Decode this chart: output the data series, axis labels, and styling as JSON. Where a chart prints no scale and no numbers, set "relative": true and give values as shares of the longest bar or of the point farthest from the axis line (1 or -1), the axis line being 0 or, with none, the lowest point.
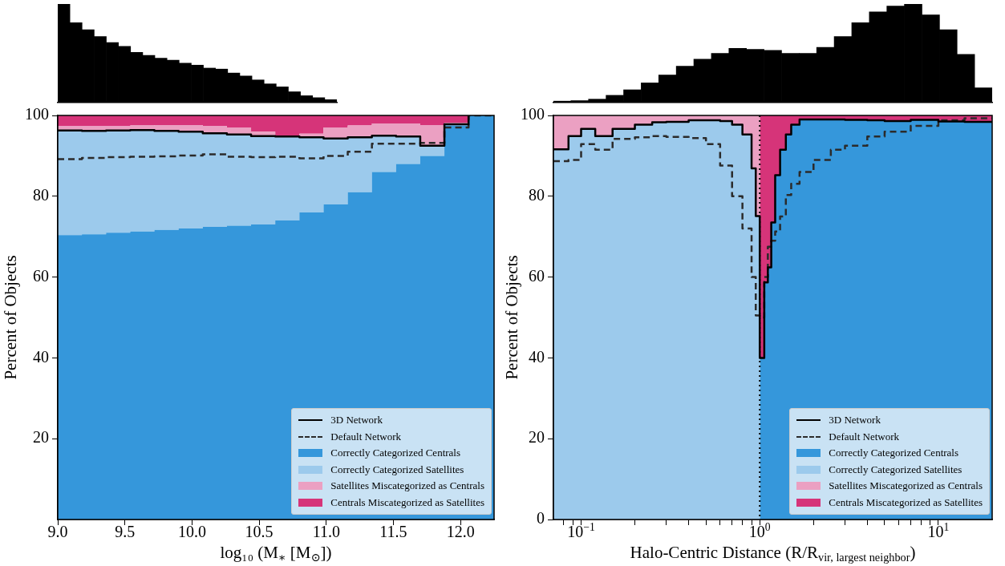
{
  "chart_data": [
    {
      "type": "bar",
      "relative": true,
      "color": "#000000",
      "categories": [
        null,
        null,
        null,
        null,
        null,
        null,
        null,
        null,
        null,
        null,
        null,
        null,
        null,
        null,
        null,
        null,
        null,
        null,
        null,
        null,
        null,
        null,
        null
      ],
      "values": [
        1,
        0.81,
        0.74,
        0.67,
        0.61,
        0.57,
        0.51,
        0.48,
        0.45,
        0.43,
        0.4,
        0.38,
        0.35,
        0.34,
        0.3,
        0.27,
        0.23,
        0.19,
        0.16,
        0.11,
        0.07,
        0.05,
        0.03
      ]
    },
    {
      "type": "bar",
      "relative": true,
      "color": "#000000",
      "categories": [
        null,
        null,
        null,
        null,
        null,
        null,
        null,
        null,
        null,
        null,
        null,
        null,
        null,
        null,
        null,
        null,
        null,
        null,
        null,
        null,
        null,
        null,
        null,
        null,
        null
      ],
      "values": [
        0.015,
        0.02,
        0.035,
        0.074,
        0.13,
        0.2,
        0.28,
        0.37,
        0.44,
        0.5,
        0.55,
        0.54,
        0.53,
        0.5,
        0.5,
        0.56,
        0.67,
        0.81,
        0.92,
        0.98,
        1,
        0.89,
        0.74,
        0.49,
        0.15
      ]
    },
    {
      "type": "area",
      "stacked": true,
      "xlabel": "log₁₀ (M$_{∗}$ [M$_{⊙}$])",
      "ylabel": "Percent of Objects",
      "legend": "bottom right",
      "xlim": [
        9.0,
        12.25
      ],
      "ylim": [
        0,
        100
      ],
      "xticks": [
        {
          "value": 9,
          "label": "9.0"
        },
        9.5,
        {
          "value": 10,
          "label": "10.0"
        },
        10.5,
        {
          "value": 11,
          "label": "11.0"
        },
        11.5,
        {
          "value": 12,
          "label": "12.0"
        }
      ],
      "yticks": [
        20,
        40,
        60,
        80,
        100
      ],
      "x": [
        9.0,
        9.18,
        9.36,
        9.54,
        9.72,
        9.9,
        10.08,
        10.26,
        10.44,
        10.62,
        10.8,
        10.98,
        11.16,
        11.34,
        11.52,
        11.7,
        11.88,
        12.06,
        12.25
      ],
      "series": [
        {
          "name": "3D Network",
          "type": "step",
          "line_style": "solid",
          "color": "#000000",
          "values": [
            96.3,
            96.2,
            96.3,
            96.4,
            96.2,
            96,
            95.6,
            95.3,
            94.9,
            94.8,
            94.6,
            94.3,
            94.6,
            95,
            94.8,
            92.5,
            97.8,
            99.8,
            null
          ]
        },
        {
          "name": "Default Network",
          "type": "step",
          "line_style": "dashed",
          "color": "#2b2b2b",
          "values": [
            89.2,
            89.5,
            89.7,
            89.8,
            89.9,
            90.1,
            90.4,
            89.8,
            89.7,
            89.8,
            89.4,
            90,
            91,
            93,
            93,
            93.2,
            97,
            100,
            100
          ]
        },
        {
          "name": "Correctly Categorized Centrals",
          "color": "#3597db",
          "values": [
            70.4,
            70.6,
            71,
            71.3,
            71.7,
            72,
            72.4,
            72.7,
            73,
            74,
            76,
            78,
            81,
            86,
            88,
            90,
            97.5,
            100,
            100
          ]
        },
        {
          "name": "Correctly Categorized Satellites",
          "color": "#9ccaec",
          "values": [
            25.9,
            25.6,
            25.3,
            25.1,
            24.5,
            24,
            23.2,
            22.6,
            21.9,
            20.8,
            18.6,
            16.3,
            13.6,
            9,
            6.8,
            2.5,
            0.3,
            0,
            0
          ]
        },
        {
          "name": "Satellites Miscategorized as Centrals",
          "color": "#eba0c2",
          "values": [
            1.1,
            1.2,
            1.1,
            1.1,
            1.4,
            1.6,
            1.8,
            1.7,
            1.1,
            0.2,
            0.9,
            2.7,
            2.9,
            3,
            3.2,
            5.1,
            0.4,
            0,
            0
          ]
        },
        {
          "name": "Centrals Miscategorized as Satellites",
          "color": "#d63479",
          "values": [
            2.6,
            2.6,
            2.6,
            2.5,
            2.4,
            2.4,
            2.6,
            3,
            4,
            5,
            4.5,
            3,
            2.5,
            2,
            2,
            2.4,
            1.8,
            0,
            0
          ]
        }
      ]
    },
    {
      "type": "area",
      "stacked": true,
      "xlabel": "Halo-Centric Distance (R/R$_{vir, largest neighbor}$)",
      "ylabel": "Percent of Objects",
      "legend": "bottom right",
      "log": "x",
      "xlim": [
        0.07,
        20
      ],
      "ylim": [
        0,
        100
      ],
      "xticks": [
        {
          "value": 0.08,
          "label": null
        },
        {
          "value": 0.09,
          "label": null
        },
        {
          "value": 0.1,
          "label": "10$^{−1}$"
        },
        {
          "value": 0.2,
          "label": null
        },
        {
          "value": 0.3,
          "label": null
        },
        {
          "value": 0.4,
          "label": null
        },
        {
          "value": 0.5,
          "label": null
        },
        {
          "value": 0.6,
          "label": null
        },
        {
          "value": 0.7,
          "label": null
        },
        {
          "value": 0.8,
          "label": null
        },
        {
          "value": 0.9,
          "label": null
        },
        {
          "value": 1,
          "label": "10$^{0}$"
        },
        {
          "value": 2,
          "label": null
        },
        {
          "value": 3,
          "label": null
        },
        {
          "value": 4,
          "label": null
        },
        {
          "value": 5,
          "label": null
        },
        {
          "value": 6,
          "label": null
        },
        {
          "value": 7,
          "label": null
        },
        {
          "value": 8,
          "label": null
        },
        {
          "value": 9,
          "label": null
        },
        {
          "value": 10,
          "label": "10$^{1}$"
        }
      ],
      "yticks": [
        0,
        20,
        40,
        60,
        80,
        100
      ],
      "ref_lines": [
        {
          "axis": "x",
          "value": 1,
          "color": "#000000",
          "line_style": "dotted"
        }
      ],
      "x": [
        0.07,
        0.085,
        0.1,
        0.12,
        0.15,
        0.2,
        0.25,
        0.3,
        0.4,
        0.5,
        0.6,
        0.7,
        0.8,
        0.9,
        0.95,
        1.0,
        1.06,
        1.11,
        1.16,
        1.22,
        1.3,
        1.4,
        1.5,
        1.67,
        2,
        2.5,
        3,
        4,
        5,
        7,
        10,
        14,
        20
      ],
      "series": [
        {
          "name": "3D Network",
          "type": "step",
          "line_style": "solid",
          "color": "#000000",
          "values": [
            91.6,
            94.9,
            96.7,
            94.9,
            96.7,
            97.7,
            98.3,
            98.4,
            98.8,
            98.8,
            98.6,
            97.7,
            95.3,
            86.9,
            75.1,
            40,
            58.7,
            62.4,
            73.5,
            85.2,
            91.5,
            95.3,
            97.7,
            99,
            99,
            99,
            98.9,
            98.8,
            98.6,
            98.9,
            98.5,
            98.4,
            98.4
          ]
        },
        {
          "name": "Default Network",
          "type": "step",
          "line_style": "dashed",
          "color": "#2b2b2b",
          "values": [
            88.7,
            89,
            92.9,
            91.5,
            94.2,
            94.6,
            94.9,
            94.7,
            94.4,
            92.9,
            87.6,
            80,
            72,
            60,
            50.5,
            50,
            60,
            67.5,
            69,
            71.3,
            75,
            80.3,
            83.1,
            86,
            89,
            91.5,
            92.5,
            94.8,
            96,
            97.4,
            98.8,
            99.3,
            99.3
          ]
        },
        {
          "name": "Correctly Categorized Centrals",
          "color": "#3597db",
          "values": [
            null,
            null,
            null,
            null,
            null,
            null,
            null,
            null,
            null,
            null,
            null,
            null,
            null,
            null,
            null,
            40,
            58.7,
            62.4,
            73.5,
            85.2,
            91.5,
            95.3,
            97.7,
            99,
            99,
            99,
            98.9,
            98.8,
            98.6,
            98.9,
            98.5,
            98.4,
            98.4
          ]
        },
        {
          "name": "Correctly Categorized Satellites",
          "color": "#9ccaec",
          "values": [
            91.6,
            94.9,
            96.7,
            94.9,
            96.7,
            97.7,
            98.3,
            98.4,
            98.8,
            98.8,
            98.6,
            97.7,
            95.3,
            86.9,
            75.1,
            0,
            null,
            null,
            null,
            null,
            null,
            null,
            null,
            null,
            null,
            null,
            null,
            null,
            null,
            null,
            null,
            null,
            null
          ]
        },
        {
          "name": "Satellites Miscategorized as Centrals",
          "color": "#eba0c2",
          "values": [
            8.4,
            5.1,
            3.3,
            5.1,
            3.3,
            2.3,
            1.7,
            1.6,
            1.2,
            1.2,
            1.4,
            2.3,
            4.7,
            13.1,
            24.9,
            0,
            null,
            null,
            null,
            null,
            null,
            null,
            null,
            null,
            null,
            null,
            null,
            null,
            null,
            null,
            null,
            null,
            null
          ]
        },
        {
          "name": "Centrals Miscategorized as Satellites",
          "color": "#d63479",
          "values": [
            null,
            null,
            null,
            null,
            null,
            null,
            null,
            null,
            null,
            null,
            null,
            null,
            null,
            null,
            null,
            60,
            41.3,
            37.6,
            26.5,
            14.8,
            8.5,
            4.7,
            2.3,
            1,
            1,
            1,
            1.1,
            1.2,
            1.4,
            1.1,
            1.5,
            1.6,
            1.6
          ]
        }
      ]
    }
  ]
}
